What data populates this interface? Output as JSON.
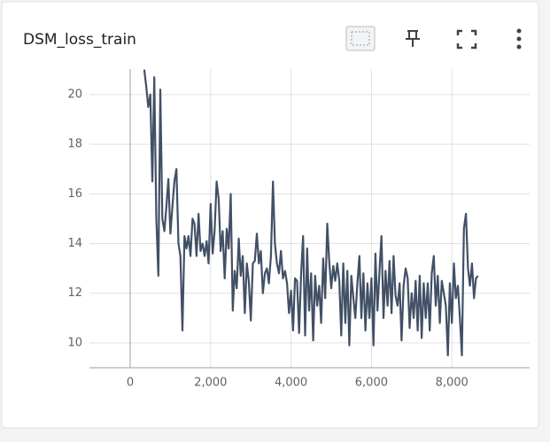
{
  "chart_data": {
    "type": "line",
    "title": "DSM_loss_train",
    "x": [
      350,
      400,
      450,
      500,
      550,
      600,
      650,
      700,
      750,
      800,
      850,
      900,
      950,
      1000,
      1050,
      1100,
      1150,
      1200,
      1250,
      1300,
      1350,
      1400,
      1450,
      1500,
      1550,
      1600,
      1650,
      1700,
      1750,
      1800,
      1850,
      1900,
      1950,
      2000,
      2050,
      2100,
      2150,
      2200,
      2250,
      2300,
      2350,
      2400,
      2450,
      2500,
      2550,
      2600,
      2650,
      2700,
      2750,
      2800,
      2850,
      2900,
      2950,
      3000,
      3050,
      3100,
      3150,
      3200,
      3250,
      3300,
      3350,
      3400,
      3450,
      3500,
      3550,
      3600,
      3650,
      3700,
      3750,
      3800,
      3850,
      3900,
      3950,
      4000,
      4050,
      4100,
      4150,
      4200,
      4250,
      4300,
      4350,
      4400,
      4450,
      4500,
      4550,
      4600,
      4650,
      4700,
      4750,
      4800,
      4850,
      4900,
      4950,
      5000,
      5050,
      5100,
      5150,
      5200,
      5250,
      5300,
      5350,
      5400,
      5450,
      5500,
      5550,
      5600,
      5650,
      5700,
      5750,
      5800,
      5850,
      5900,
      5950,
      6000,
      6050,
      6100,
      6150,
      6200,
      6250,
      6300,
      6350,
      6400,
      6450,
      6500,
      6550,
      6600,
      6650,
      6700,
      6750,
      6800,
      6850,
      6900,
      6950,
      7000,
      7050,
      7100,
      7150,
      7200,
      7250,
      7300,
      7350,
      7400,
      7450,
      7500,
      7550,
      7600,
      7650,
      7700,
      7750,
      7800,
      7850,
      7900,
      7950,
      8000,
      8050,
      8100,
      8150,
      8200,
      8250,
      8300,
      8350,
      8400,
      8450,
      8500,
      8550,
      8600,
      8650
    ],
    "series": [
      {
        "color": "#425066",
        "values": [
          21,
          20.3,
          19.5,
          20,
          16.5,
          20.7,
          15,
          12.7,
          20.2,
          15,
          14.5,
          15.5,
          16.6,
          14.4,
          15.5,
          16.5,
          17,
          14,
          13.5,
          10.5,
          14.3,
          13.8,
          14.3,
          13.5,
          15,
          14.8,
          13.5,
          15.2,
          13.7,
          14,
          13.5,
          14.1,
          13.2,
          15.6,
          13.6,
          14.5,
          16.5,
          15.8,
          13.7,
          14.5,
          12.6,
          14.6,
          13.8,
          16,
          11.3,
          12.9,
          12.2,
          14.2,
          12.7,
          13.5,
          11.2,
          13.2,
          12.5,
          10.9,
          13.2,
          13.3,
          14.4,
          13.2,
          13.7,
          12,
          12.8,
          13,
          12.4,
          13.5,
          16.5,
          14,
          13.2,
          12.8,
          13.7,
          12.6,
          12.9,
          12.4,
          11.2,
          12.1,
          10.5,
          12.6,
          12.5,
          10.4,
          12.7,
          14.3,
          10.3,
          13.8,
          11.3,
          12.8,
          10.1,
          12.7,
          11.5,
          12.3,
          10.8,
          13.4,
          11.8,
          14.8,
          13.3,
          12.2,
          13.1,
          12.5,
          13.2,
          12.5,
          10.3,
          13.2,
          10.8,
          12.9,
          9.9,
          12.7,
          11.8,
          11,
          12.4,
          13.5,
          11,
          12.8,
          10.5,
          12.4,
          11,
          12.6,
          9.9,
          13.6,
          11.3,
          12.9,
          14.3,
          11,
          12.9,
          11.5,
          13.3,
          11.2,
          13.5,
          11.9,
          11.5,
          12.4,
          10.1,
          12.3,
          13,
          12.6,
          10.6,
          12,
          11,
          12.5,
          10.5,
          12.7,
          10.2,
          12.4,
          11,
          12.4,
          10.5,
          12.8,
          13.5,
          11.5,
          12.7,
          10.8,
          12.5,
          12,
          11.5,
          9.5,
          12.4,
          10.8,
          13.2,
          11.8,
          12.3,
          11,
          9.5,
          14.6,
          15.2,
          13,
          12.3,
          13.2,
          11.8,
          12.6,
          12.7
        ]
      }
    ],
    "xlim": [
      -1013,
      9934
    ],
    "ylim": [
      9,
      21.03
    ],
    "xticks": [
      0,
      {
        "value": 2000,
        "label": "2,000"
      },
      {
        "value": 4000,
        "label": "4,000"
      },
      {
        "value": 6000,
        "label": "6,000"
      },
      {
        "value": 8000,
        "label": "8,000"
      }
    ],
    "yticks": [
      10,
      12,
      14,
      16,
      18,
      20
    ],
    "grid": true
  }
}
